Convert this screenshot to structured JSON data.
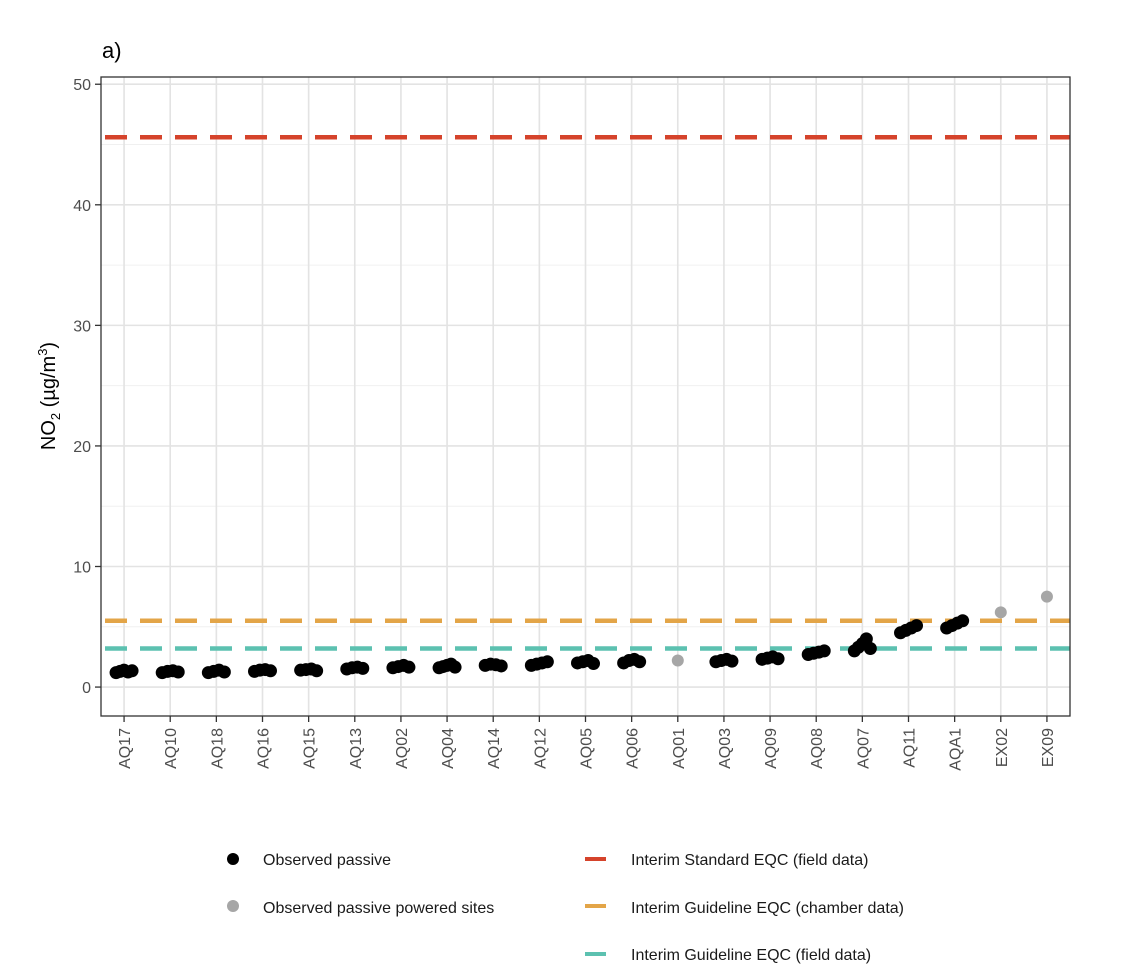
{
  "chart_data": {
    "type": "scatter",
    "panel_label": "a)",
    "ylabel": {
      "prefix": "NO",
      "sub": "2",
      "unit_open": " (µg/m",
      "sup": "3",
      "unit_close": ")"
    },
    "ylim": [
      -2.4,
      50.6
    ],
    "yticks": [
      0,
      10,
      20,
      30,
      40,
      50
    ],
    "ytick_labels": [
      "0",
      "10",
      "20",
      "30",
      "40",
      "50"
    ],
    "ygrid_minor": [
      5,
      15,
      25,
      35,
      45
    ],
    "categories": [
      "AQ17",
      "AQ10",
      "AQ18",
      "AQ16",
      "AQ15",
      "AQ13",
      "AQ02",
      "AQ04",
      "AQ14",
      "AQ12",
      "AQ05",
      "AQ06",
      "AQ01",
      "AQ03",
      "AQ09",
      "AQ08",
      "AQ07",
      "AQ11",
      "AQA1",
      "EX02",
      "EX09"
    ],
    "series": [
      {
        "name": "Observed passive",
        "color": "#000000",
        "points": [
          {
            "cat": "AQ17",
            "values": [
              1.2,
              1.3,
              1.4,
              1.25,
              1.35
            ]
          },
          {
            "cat": "AQ10",
            "values": [
              1.2,
              1.3,
              1.35,
              1.25
            ]
          },
          {
            "cat": "AQ18",
            "values": [
              1.2,
              1.3,
              1.4,
              1.25
            ]
          },
          {
            "cat": "AQ16",
            "values": [
              1.3,
              1.4,
              1.45,
              1.35
            ]
          },
          {
            "cat": "AQ15",
            "values": [
              1.4,
              1.45,
              1.5,
              1.35
            ]
          },
          {
            "cat": "AQ13",
            "values": [
              1.5,
              1.6,
              1.65,
              1.55
            ]
          },
          {
            "cat": "AQ02",
            "values": [
              1.6,
              1.7,
              1.8,
              1.65
            ]
          },
          {
            "cat": "AQ04",
            "values": [
              1.6,
              1.7,
              1.8,
              1.9,
              1.65
            ]
          },
          {
            "cat": "AQ14",
            "values": [
              1.8,
              1.9,
              1.85,
              1.75
            ]
          },
          {
            "cat": "AQ12",
            "values": [
              1.8,
              1.9,
              2.0,
              2.1
            ]
          },
          {
            "cat": "AQ05",
            "values": [
              2.0,
              2.1,
              2.2,
              1.95
            ]
          },
          {
            "cat": "AQ06",
            "values": [
              2.0,
              2.2,
              2.3,
              2.1
            ]
          },
          {
            "cat": "AQ03",
            "values": [
              2.1,
              2.2,
              2.3,
              2.15
            ]
          },
          {
            "cat": "AQ09",
            "values": [
              2.3,
              2.4,
              2.5,
              2.35
            ]
          },
          {
            "cat": "AQ08",
            "values": [
              2.7,
              2.8,
              2.9,
              3.0
            ]
          },
          {
            "cat": "AQ07",
            "values": [
              3.0,
              3.3,
              3.6,
              4.0,
              3.2
            ]
          },
          {
            "cat": "AQ11",
            "values": [
              4.5,
              4.7,
              4.9,
              5.1
            ]
          },
          {
            "cat": "AQA1",
            "values": [
              4.9,
              5.1,
              5.3,
              5.5
            ]
          }
        ]
      },
      {
        "name": "Observed passive powered sites",
        "color": "#a6a6a6",
        "points": [
          {
            "cat": "AQ01",
            "values": [
              2.2
            ]
          },
          {
            "cat": "EX02",
            "values": [
              6.2
            ]
          },
          {
            "cat": "EX09",
            "values": [
              7.5
            ]
          }
        ]
      }
    ],
    "hlines": [
      {
        "name": "Interim Standard EQC (field data)",
        "value": 45.6,
        "color": "#d5432b"
      },
      {
        "name": "Interim Guideline EQC (chamber data)",
        "value": 5.5,
        "color": "#e3a548"
      },
      {
        "name": "Interim Guideline EQC (field data)",
        "value": 3.2,
        "color": "#5cc1b0"
      }
    ],
    "legend_position": "bottom"
  }
}
